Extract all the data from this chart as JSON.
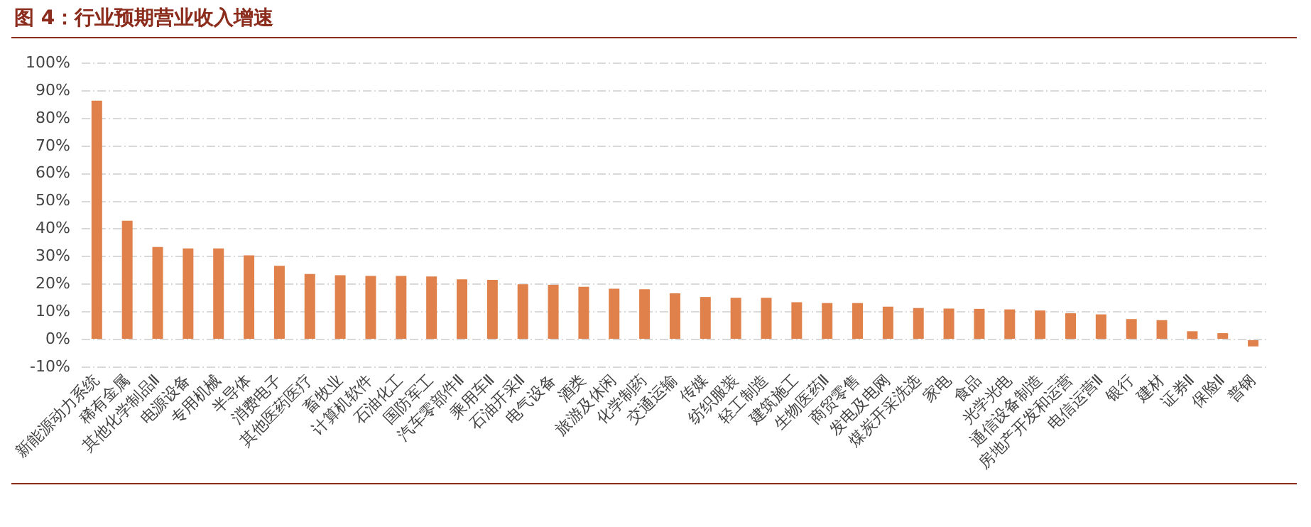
{
  "chart_data": {
    "type": "bar",
    "title": "图 4：行业预期营业收入增速",
    "categories": [
      "新能源动力系统",
      "稀有金属",
      "其他化学制品Ⅱ",
      "电源设备",
      "专用机械",
      "半导体",
      "消费电子",
      "其他医药医疗",
      "畜牧业",
      "计算机软件",
      "石油化工",
      "国防军工",
      "汽车零部件Ⅱ",
      "乘用车Ⅱ",
      "石油开采Ⅱ",
      "电气设备",
      "酒类",
      "旅游及休闲",
      "化学制药",
      "交通运输",
      "传媒",
      "纺织服装",
      "轻工制造",
      "建筑施工",
      "生物医药Ⅱ",
      "商贸零售",
      "发电及电网",
      "煤炭开采洗选",
      "家电",
      "食品",
      "光学光电",
      "通信设备制造",
      "房地产开发和运营",
      "电信运营Ⅱ",
      "银行",
      "建材",
      "证券Ⅱ",
      "保险Ⅱ",
      "普钢"
    ],
    "values": [
      86.5,
      43,
      33.5,
      33,
      33,
      30.5,
      26.7,
      23.7,
      23.3,
      23,
      23,
      22.8,
      21.8,
      21.6,
      20,
      19.8,
      19.1,
      18.4,
      18.2,
      16.7,
      15.4,
      15.1,
      15.1,
      13.5,
      13.2,
      13.2,
      11.9,
      11.4,
      11.2,
      11.1,
      10.9,
      10.5,
      9.5,
      9.1,
      7.4,
      7,
      3,
      2.3,
      -2.5
    ],
    "color": "#e0804a",
    "ylim": [
      -10,
      100
    ],
    "yticks": [
      {
        "value": -10,
        "label": "-10%"
      },
      {
        "value": 0,
        "label": "0%"
      },
      {
        "value": 10,
        "label": "10%"
      },
      {
        "value": 20,
        "label": "20%"
      },
      {
        "value": 30,
        "label": "30%"
      },
      {
        "value": 40,
        "label": "40%"
      },
      {
        "value": 50,
        "label": "50%"
      },
      {
        "value": 60,
        "label": "60%"
      },
      {
        "value": 70,
        "label": "70%"
      },
      {
        "value": 80,
        "label": "80%"
      },
      {
        "value": 90,
        "label": "90%"
      },
      {
        "value": 100,
        "label": "100%"
      }
    ],
    "grid": "y",
    "legend": false
  }
}
